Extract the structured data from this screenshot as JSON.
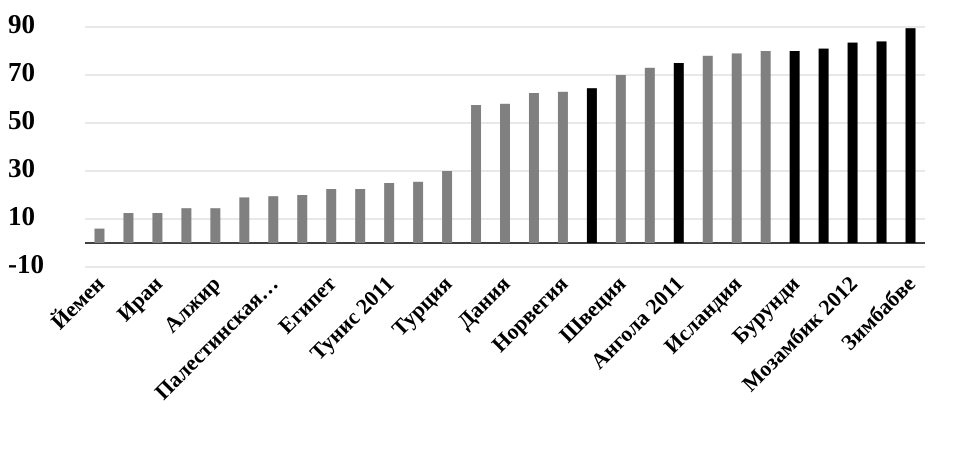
{
  "chart_data": {
    "type": "bar",
    "categories": [
      "Йемен",
      null,
      "Иран",
      null,
      "Алжир",
      null,
      "Палестинская…",
      null,
      "Египет",
      null,
      "Тунис 2011",
      null,
      "Турция",
      null,
      "Дания",
      null,
      "Норвегия",
      null,
      "Швеция",
      null,
      "Ангола 2011",
      null,
      "Исландия",
      null,
      "Бурунди",
      null,
      "Мозамбик 2012",
      null,
      "Зимбабве"
    ],
    "values": [
      6,
      12.5,
      12.5,
      14.5,
      14.5,
      19,
      19.5,
      20,
      22.5,
      22.5,
      25,
      25.5,
      30,
      57.5,
      58,
      62.5,
      63,
      64.5,
      70,
      73,
      75,
      78,
      79,
      80,
      80,
      81,
      83.5,
      84,
      89.5
    ],
    "colors": [
      "#808080",
      "#808080",
      "#808080",
      "#808080",
      "#808080",
      "#808080",
      "#808080",
      "#808080",
      "#808080",
      "#808080",
      "#808080",
      "#808080",
      "#808080",
      "#808080",
      "#808080",
      "#808080",
      "#808080",
      "#000000",
      "#808080",
      "#808080",
      "#000000",
      "#808080",
      "#808080",
      "#808080",
      "#000000",
      "#000000",
      "#000000",
      "#000000",
      "#000000"
    ],
    "ylim": [
      -10,
      90
    ],
    "yticks": [
      -10,
      10,
      30,
      50,
      70,
      90
    ],
    "grid": true
  }
}
